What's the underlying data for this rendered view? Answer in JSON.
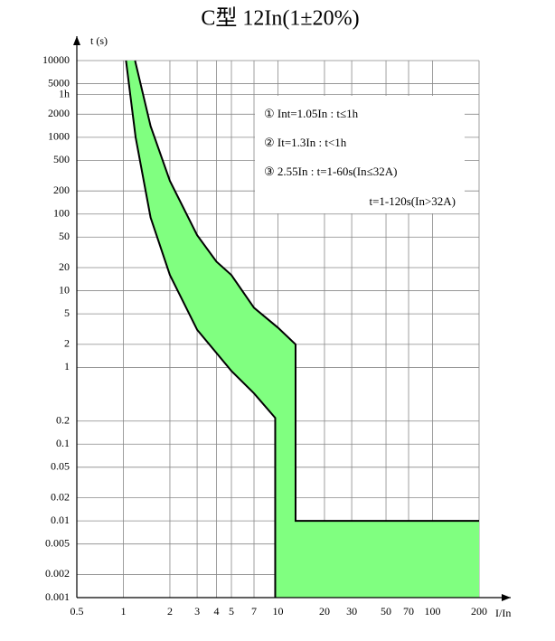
{
  "chart_data": {
    "type": "band",
    "title": "C型 12In(1±20%)",
    "y_label": "t (s)",
    "x_label": "I/In",
    "log_x": true,
    "log_y": true,
    "grid": true,
    "fill_color": "#80ff80",
    "line_color": "#000000",
    "xlim": [
      0.5,
      200
    ],
    "xticks": [
      0.5,
      1,
      2,
      3,
      4,
      5,
      7,
      10,
      20,
      30,
      50,
      70,
      100,
      200
    ],
    "ylim": [
      0.001,
      10000
    ],
    "yticks": [
      10000,
      5000,
      {
        "value": 3600,
        "label": "1h"
      },
      2000,
      1000,
      500,
      200,
      100,
      50,
      20,
      10,
      5,
      2,
      1,
      0.2,
      0.1,
      0.05,
      0.02,
      0.01,
      0.005,
      0.002,
      0.001
    ],
    "series": [
      {
        "x": [
          1.19,
          1.5,
          2,
          3,
          4,
          5,
          7,
          10,
          13,
          13,
          200
        ],
        "values": [
          10000,
          1400,
          270,
          53,
          24,
          16,
          6,
          3.3,
          2,
          0.01,
          0.01
        ]
      },
      {
        "x": [
          1.04,
          1.2,
          1.5,
          2,
          3,
          5,
          7,
          9.6,
          9.6
        ],
        "values": [
          10000,
          1000,
          90,
          16,
          3.1,
          0.9,
          0.46,
          0.22,
          0.001
        ]
      }
    ],
    "annotations": [
      "① Int=1.05In : t≤1h",
      "② It=1.3In : t<1h",
      "③ 2.55In : t=1-60s(In≤32A)",
      "t=1-120s(In>32A)"
    ]
  }
}
